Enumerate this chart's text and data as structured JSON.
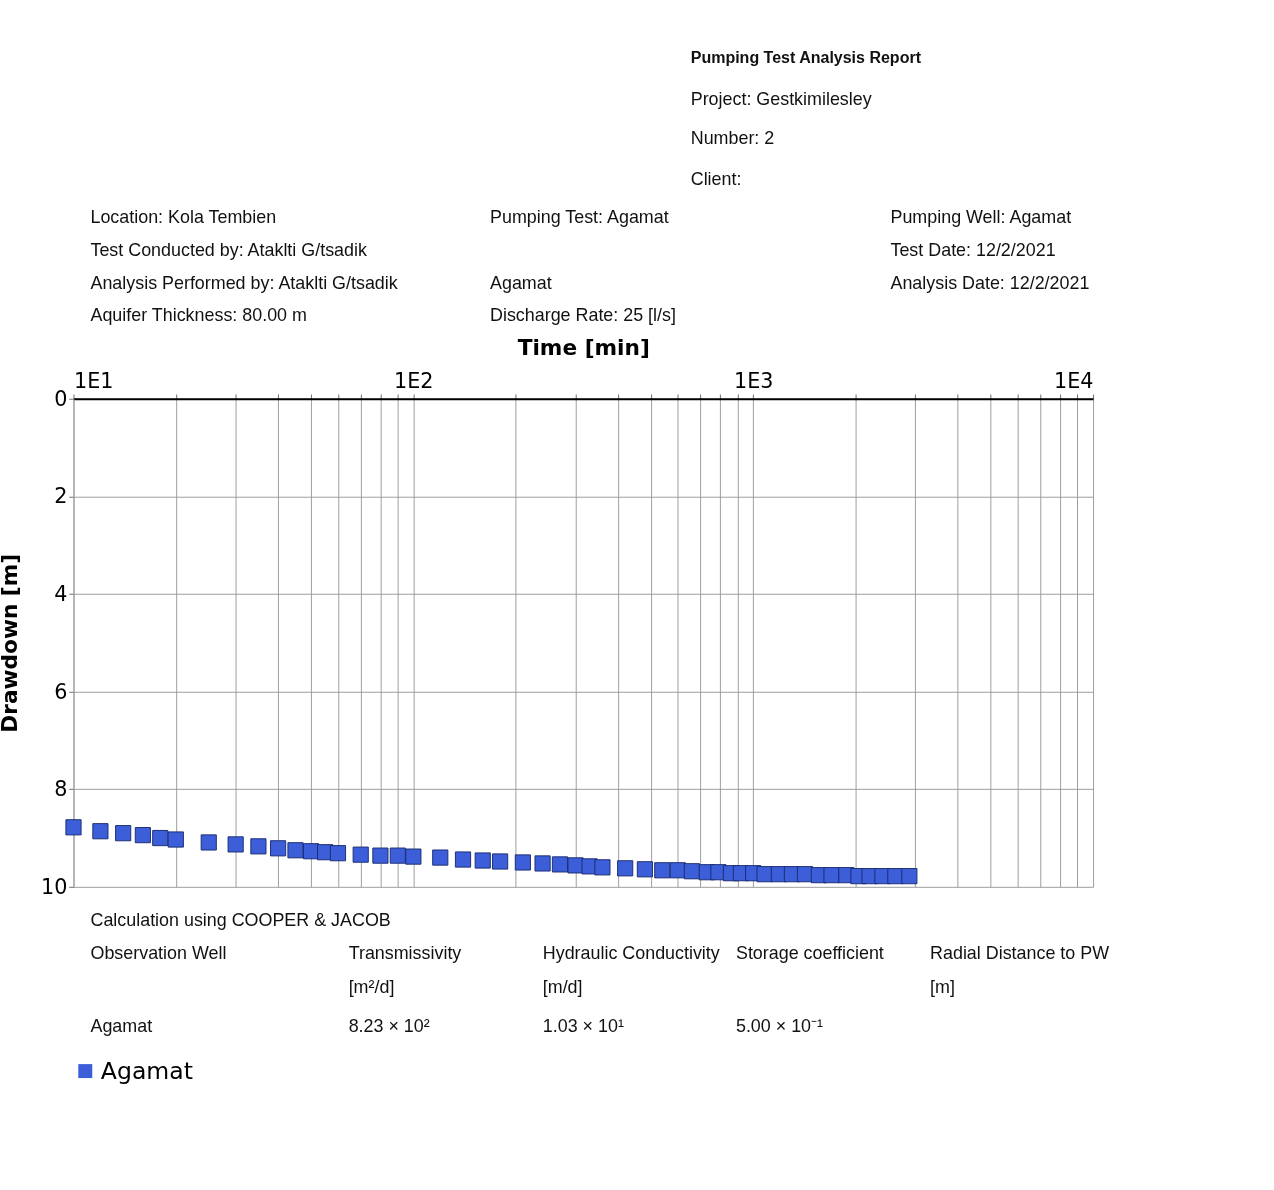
{
  "chart_data": {
    "type": "scatter",
    "xlabel": "Time [min]",
    "ylabel": "Drawdown [m]",
    "log": "x",
    "xlim": [
      10,
      10000
    ],
    "xticks": [
      {
        "value": 10,
        "label": "1E1"
      },
      {
        "value": 20,
        "label": null
      },
      {
        "value": 30,
        "label": null
      },
      {
        "value": 40,
        "label": null
      },
      {
        "value": 50,
        "label": null
      },
      {
        "value": 60,
        "label": null
      },
      {
        "value": 70,
        "label": null
      },
      {
        "value": 80,
        "label": null
      },
      {
        "value": 90,
        "label": null
      },
      {
        "value": 100,
        "label": "1E2"
      },
      {
        "value": 200,
        "label": null
      },
      {
        "value": 300,
        "label": null
      },
      {
        "value": 400,
        "label": null
      },
      {
        "value": 500,
        "label": null
      },
      {
        "value": 600,
        "label": null
      },
      {
        "value": 700,
        "label": null
      },
      {
        "value": 800,
        "label": null
      },
      {
        "value": 900,
        "label": null
      },
      {
        "value": 1000,
        "label": "1E3"
      },
      {
        "value": 2000,
        "label": null
      },
      {
        "value": 3000,
        "label": null
      },
      {
        "value": 4000,
        "label": null
      },
      {
        "value": 5000,
        "label": null
      },
      {
        "value": 6000,
        "label": null
      },
      {
        "value": 7000,
        "label": null
      },
      {
        "value": 8000,
        "label": null
      },
      {
        "value": 9000,
        "label": null
      },
      {
        "value": 10000,
        "label": "1E4"
      }
    ],
    "ylim": [
      10,
      0
    ],
    "yticks": [
      0,
      2,
      4,
      6,
      8,
      10
    ],
    "grid": true,
    "legend": "bottom",
    "marker": "square",
    "series": [
      {
        "name": "Agamat",
        "color": "#3c5fd9",
        "x": [
          10,
          12,
          14,
          16,
          18,
          20,
          25,
          30,
          35,
          40,
          45,
          50,
          55,
          60,
          70,
          80,
          90,
          100,
          120,
          140,
          160,
          180,
          210,
          240,
          270,
          300,
          330,
          360,
          420,
          480,
          540,
          600,
          660,
          730,
          790,
          860,
          920,
          1000,
          1080,
          1190,
          1300,
          1420,
          1560,
          1700,
          1880,
          2040,
          2200,
          2400,
          2620,
          2880
        ],
        "values": [
          8.78,
          8.86,
          8.9,
          8.94,
          9.0,
          9.03,
          9.09,
          9.13,
          9.17,
          9.21,
          9.25,
          9.27,
          9.29,
          9.31,
          9.34,
          9.36,
          9.36,
          9.38,
          9.4,
          9.44,
          9.46,
          9.48,
          9.5,
          9.52,
          9.54,
          9.56,
          9.58,
          9.6,
          9.62,
          9.64,
          9.66,
          9.66,
          9.68,
          9.7,
          9.7,
          9.72,
          9.72,
          9.72,
          9.74,
          9.74,
          9.74,
          9.74,
          9.76,
          9.76,
          9.76,
          9.78,
          9.78,
          9.78,
          9.78,
          9.78
        ]
      }
    ],
    "annotations": [
      "Pumping Test Analysis Report",
      "Project:   Gestkimilesley",
      "Number: 2",
      "Client:",
      "Location: Kola Tembien",
      "Pumping Test: Agamat",
      "Pumping Well: Agamat",
      "Test Conducted by: Ataklti G/tsadik",
      "Test Date: 12/2/2021",
      "Analysis Performed by: Ataklti G/tsadik",
      "Agamat",
      "Analysis Date: 12/2/2021",
      "Aquifer Thickness: 80.00 m",
      "Discharge Rate: 25 [l/s]",
      "Calculation using COOPER & JACOB",
      "Observation Well",
      "Transmissivity",
      "[m²/d]",
      "Hydraulic Conductivity",
      "[m/d]",
      "Storage coefficient",
      "Radial Distance to PW",
      "[m]",
      "Agamat",
      "8.23 × 10²",
      "1.03 × 10¹",
      "5.00 × 10⁻¹"
    ]
  }
}
